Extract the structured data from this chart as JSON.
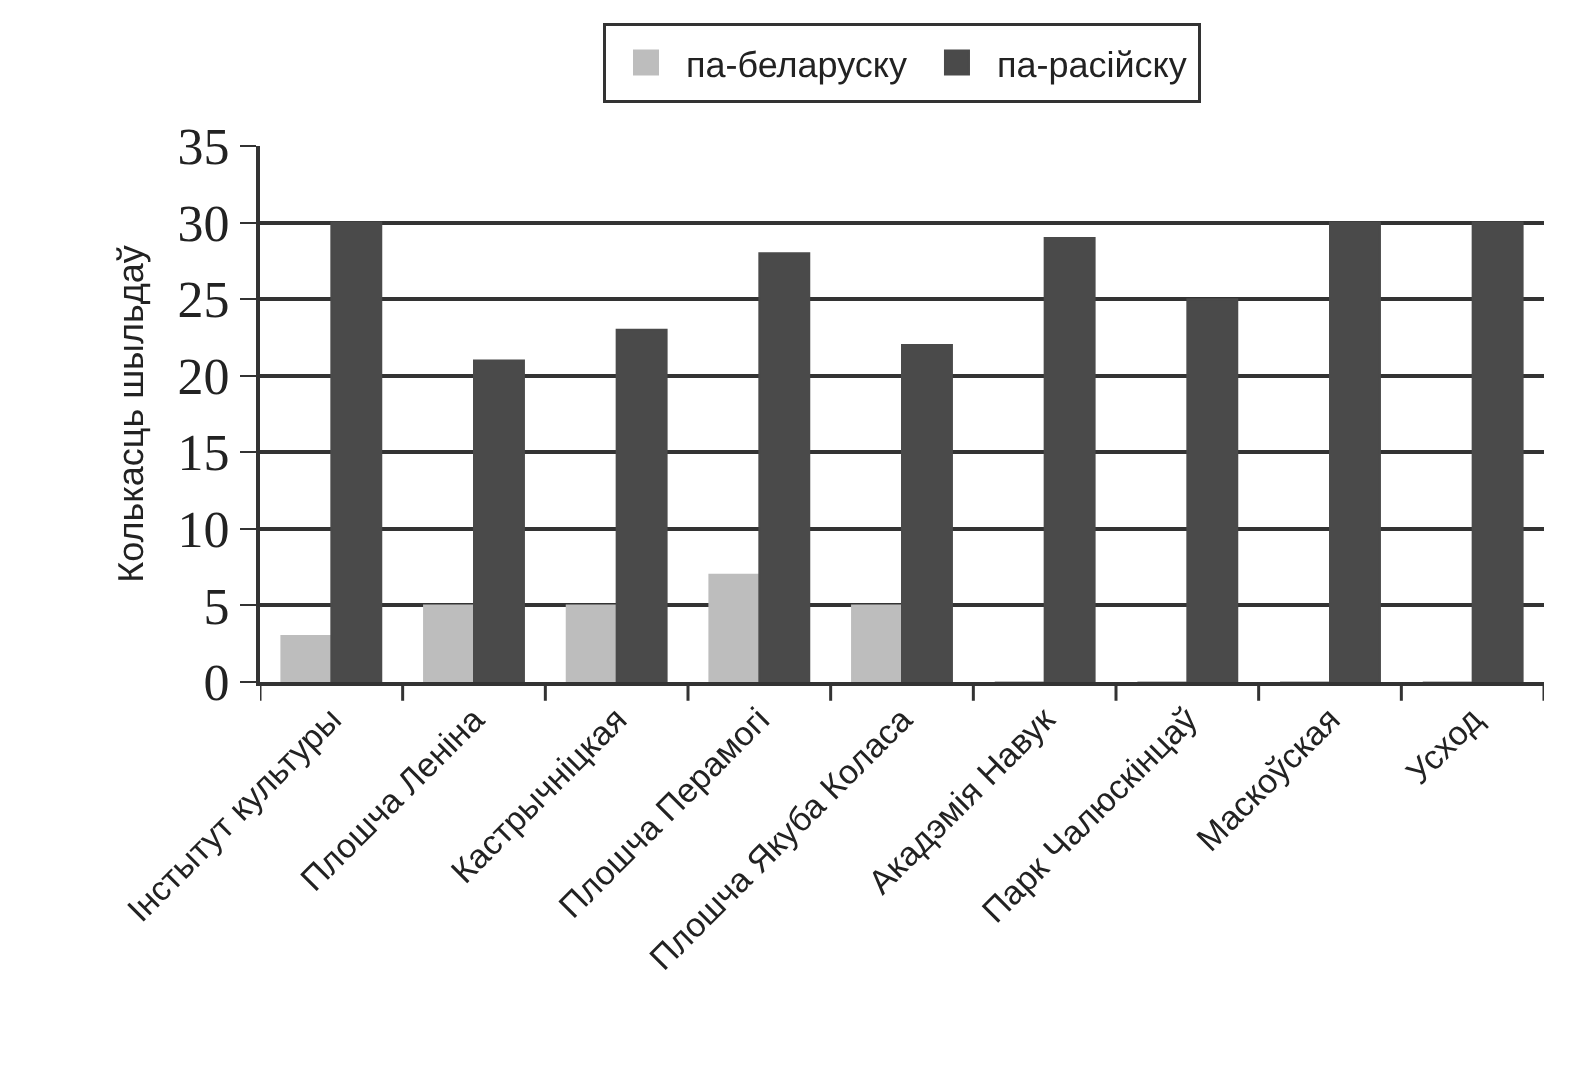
{
  "chart_data": {
    "type": "bar",
    "ylabel": "Колькасць шыльдаў",
    "categories": [
      "Інстытут культуры",
      "Плошча Леніна",
      "Кастрычніцкая",
      "Плошча Перамогі",
      "Плошча Якуба Коласа",
      "Акадэмія Навук",
      "Парк Чалюскінцаў",
      "Маскоўская",
      "Усход"
    ],
    "series": [
      {
        "name": "па-беларуску",
        "color": "#bdbdbd",
        "values": [
          3,
          5,
          5,
          7,
          5,
          0,
          0,
          0,
          0
        ]
      },
      {
        "name": "па-расійску",
        "color": "#4a4a4a",
        "values": [
          30,
          21,
          23,
          28,
          22,
          29,
          25,
          30,
          30
        ]
      }
    ],
    "ylim": [
      0,
      35
    ],
    "yticks": [
      0,
      5,
      10,
      15,
      20,
      25,
      30,
      35
    ],
    "grid": "y",
    "legend": "top"
  }
}
